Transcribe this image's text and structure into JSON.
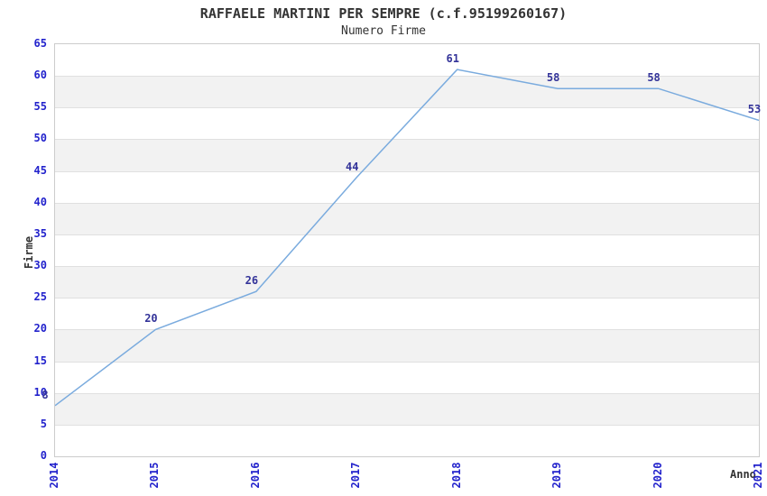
{
  "chart_data": {
    "type": "line",
    "title": "RAFFAELE MARTINI PER SEMPRE (c.f.95199260167)",
    "subtitle": "Numero Firme",
    "xlabel": "Anno",
    "ylabel": "Firme",
    "x": [
      "2014",
      "2015",
      "2016",
      "2017",
      "2018",
      "2019",
      "2020",
      "2021"
    ],
    "values": [
      8,
      20,
      26,
      44,
      61,
      58,
      58,
      53
    ],
    "ylim": [
      0,
      65
    ],
    "ytick_step": 5,
    "ytick_labels": [
      "0",
      "5",
      "10",
      "15",
      "20",
      "25",
      "30",
      "35",
      "40",
      "45",
      "50",
      "55",
      "60",
      "65"
    ],
    "legend": "none",
    "grid": "horizontal-bands",
    "colors": {
      "line": "#7aabde",
      "data_label": "#333399",
      "tick_label": "#2222cc",
      "band_gray": "#f2f2f2",
      "gridline": "#e0e0e0",
      "plot_border": "#cccccc",
      "title_text": "#333333",
      "background": "#ffffff"
    }
  }
}
